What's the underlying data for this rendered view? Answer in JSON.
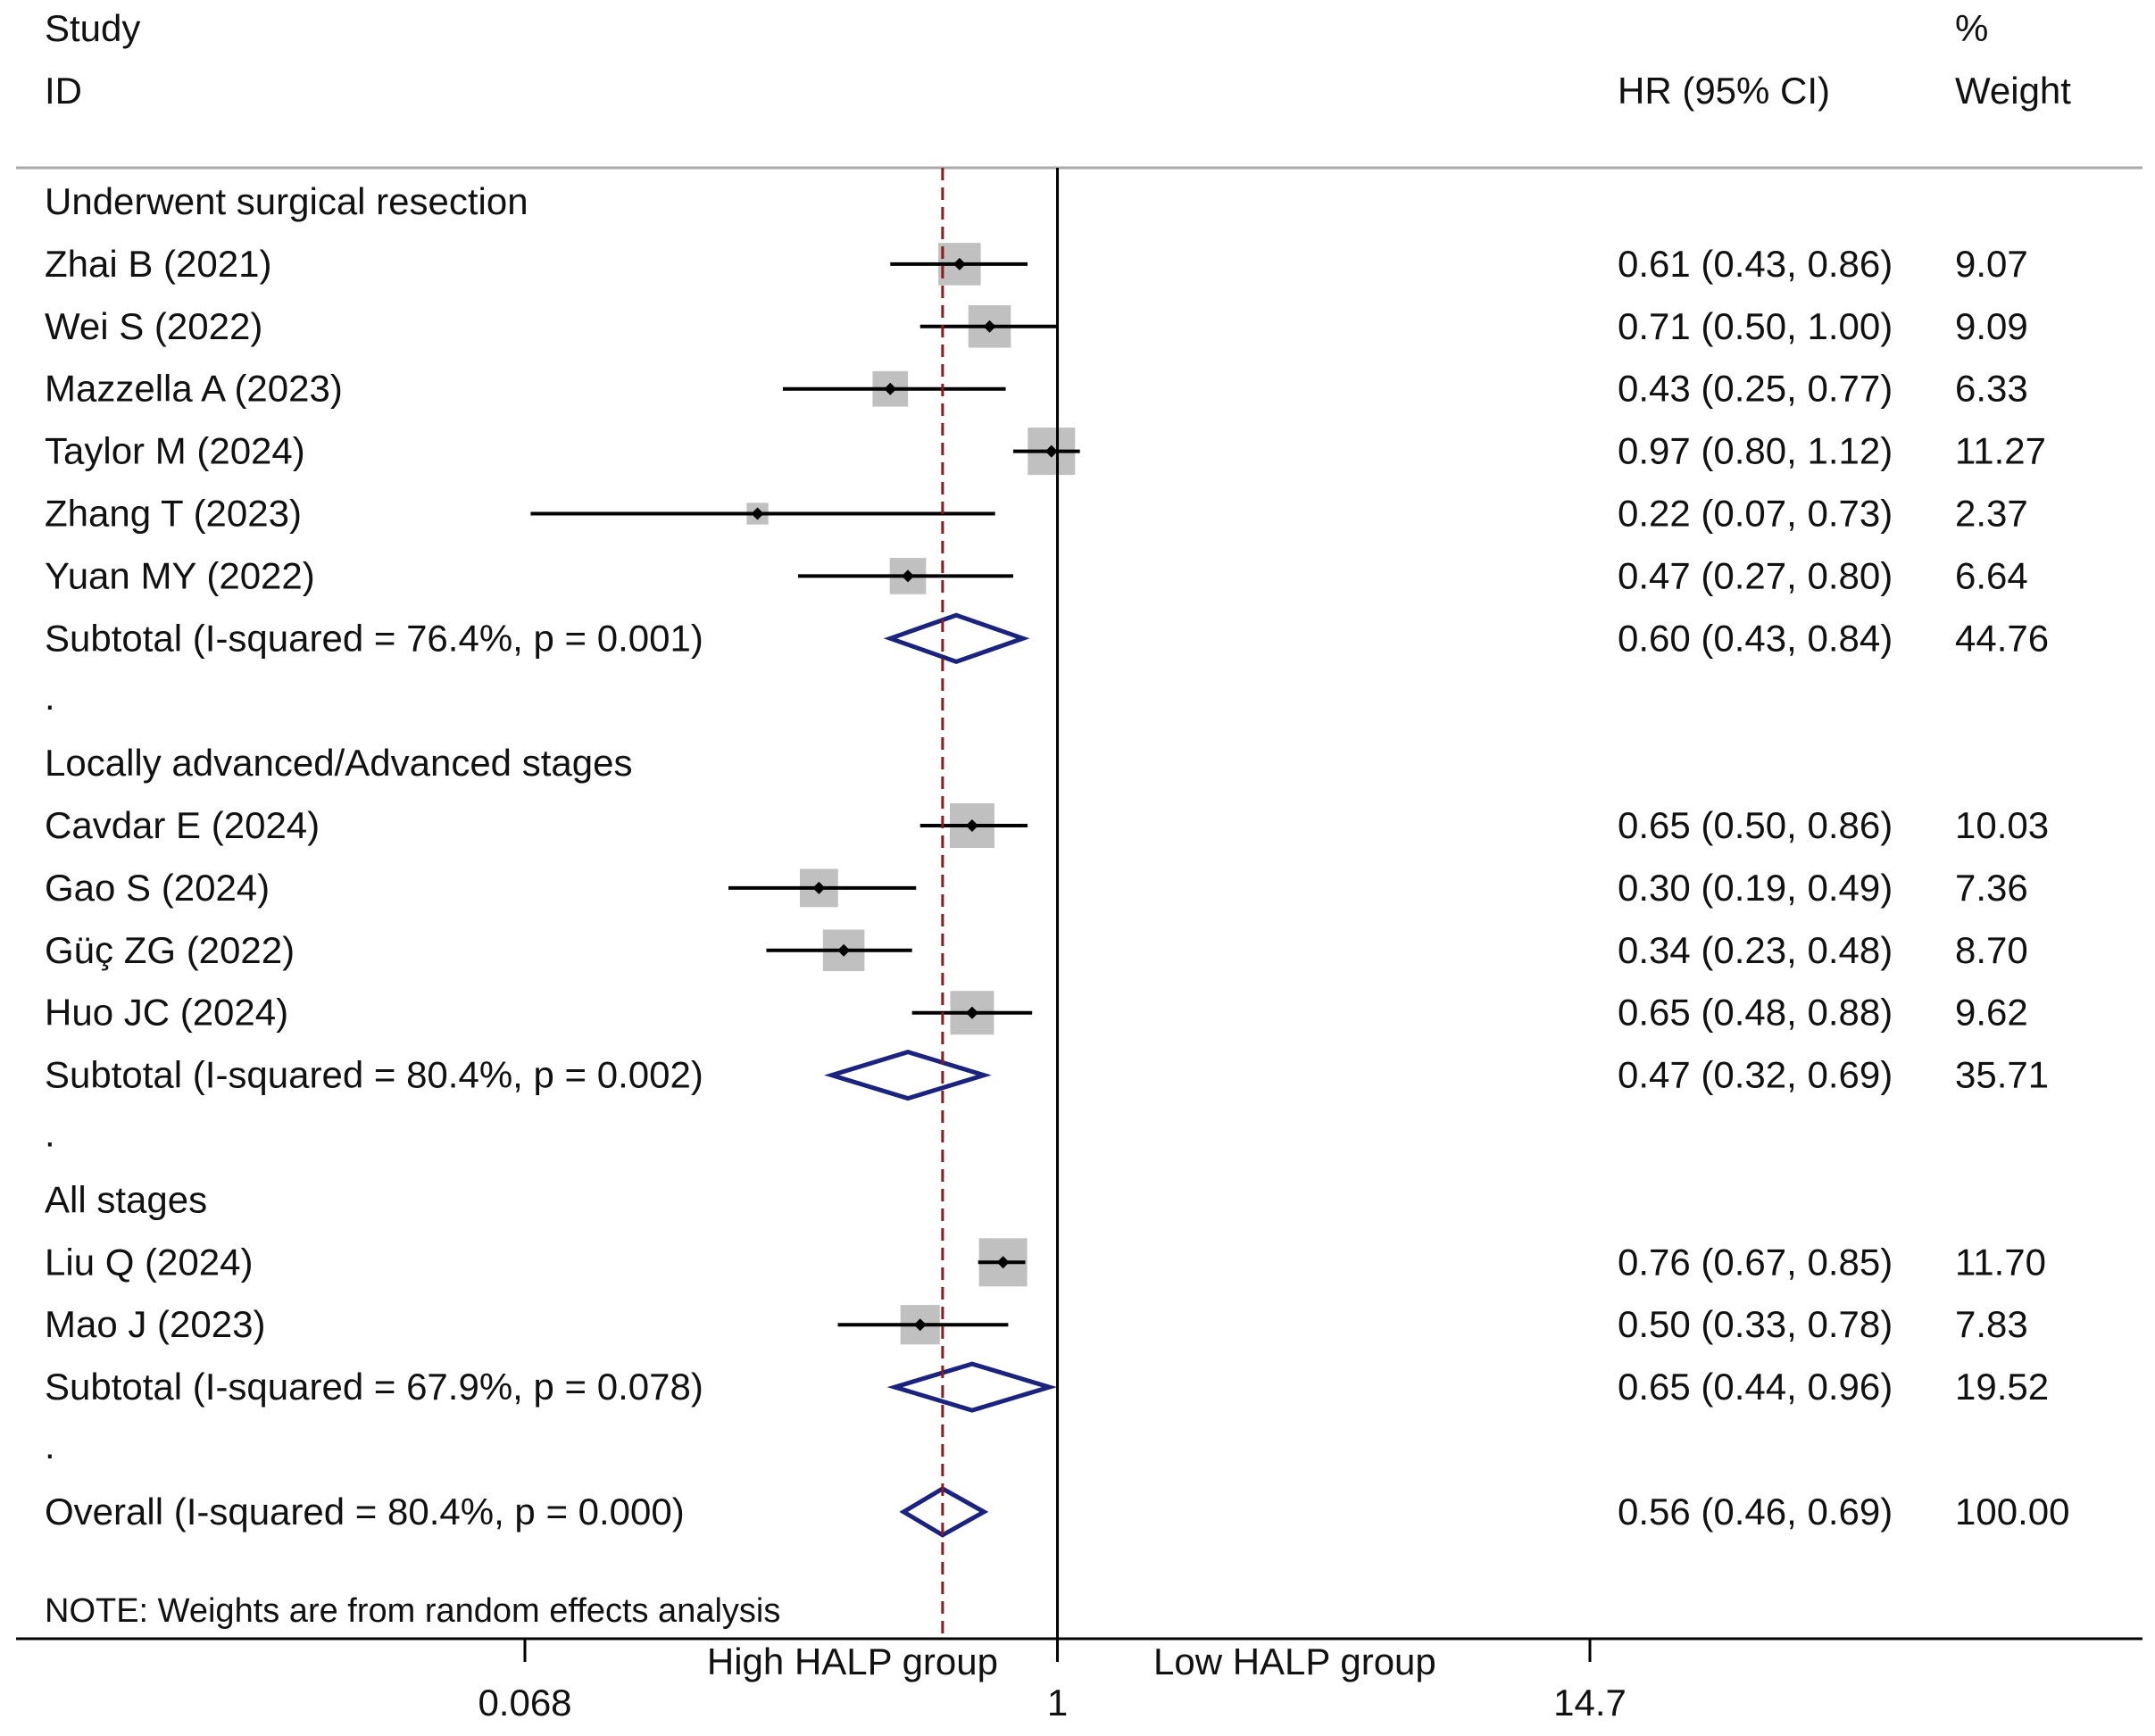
{
  "chart_data": {
    "type": "forest",
    "scale": "log",
    "header": {
      "study_line1": "Study",
      "study_line2": "ID",
      "hr_label": "HR (95% CI)",
      "weight_line1": "%",
      "weight_line2": "Weight"
    },
    "groups": [
      {
        "name": "Underwent surgical resection",
        "studies": [
          {
            "id": "Zhai B (2021)",
            "hr": 0.61,
            "lo": 0.43,
            "hi": 0.86,
            "ci_text": "0.61 (0.43, 0.86)",
            "weight": "9.07"
          },
          {
            "id": "Wei S (2022)",
            "hr": 0.71,
            "lo": 0.5,
            "hi": 1.0,
            "ci_text": "0.71 (0.50, 1.00)",
            "weight": "9.09"
          },
          {
            "id": "Mazzella A (2023)",
            "hr": 0.43,
            "lo": 0.25,
            "hi": 0.77,
            "ci_text": "0.43 (0.25, 0.77)",
            "weight": "6.33"
          },
          {
            "id": "Taylor M (2024)",
            "hr": 0.97,
            "lo": 0.8,
            "hi": 1.12,
            "ci_text": "0.97 (0.80, 1.12)",
            "weight": "11.27"
          },
          {
            "id": "Zhang T (2023)",
            "hr": 0.22,
            "lo": 0.07,
            "hi": 0.73,
            "ci_text": "0.22 (0.07, 0.73)",
            "weight": "2.37"
          },
          {
            "id": "Yuan MY (2022)",
            "hr": 0.47,
            "lo": 0.27,
            "hi": 0.8,
            "ci_text": "0.47 (0.27, 0.80)",
            "weight": "6.64"
          }
        ],
        "subtotal": {
          "label": "Subtotal  (I-squared = 76.4%, p = 0.001)",
          "hr": 0.6,
          "lo": 0.43,
          "hi": 0.84,
          "ci_text": "0.60 (0.43, 0.84)",
          "weight": "44.76"
        }
      },
      {
        "name": "Locally advanced/Advanced stages",
        "studies": [
          {
            "id": "Cavdar E (2024)",
            "hr": 0.65,
            "lo": 0.5,
            "hi": 0.86,
            "ci_text": "0.65 (0.50, 0.86)",
            "weight": "10.03"
          },
          {
            "id": "Gao S (2024)",
            "hr": 0.3,
            "lo": 0.19,
            "hi": 0.49,
            "ci_text": "0.30 (0.19, 0.49)",
            "weight": "7.36"
          },
          {
            "id": "Güç ZG (2022)",
            "hr": 0.34,
            "lo": 0.23,
            "hi": 0.48,
            "ci_text": "0.34 (0.23, 0.48)",
            "weight": "8.70"
          },
          {
            "id": "Huo JC (2024)",
            "hr": 0.65,
            "lo": 0.48,
            "hi": 0.88,
            "ci_text": "0.65 (0.48, 0.88)",
            "weight": "9.62"
          }
        ],
        "subtotal": {
          "label": "Subtotal  (I-squared = 80.4%, p = 0.002)",
          "hr": 0.47,
          "lo": 0.32,
          "hi": 0.69,
          "ci_text": "0.47 (0.32, 0.69)",
          "weight": "35.71"
        }
      },
      {
        "name": "All stages",
        "studies": [
          {
            "id": "Liu Q (2024)",
            "hr": 0.76,
            "lo": 0.67,
            "hi": 0.85,
            "ci_text": "0.76 (0.67, 0.85)",
            "weight": "11.70"
          },
          {
            "id": "Mao J (2023)",
            "hr": 0.5,
            "lo": 0.33,
            "hi": 0.78,
            "ci_text": "0.50 (0.33, 0.78)",
            "weight": "7.83"
          }
        ],
        "subtotal": {
          "label": "Subtotal  (I-squared = 67.9%, p = 0.078)",
          "hr": 0.65,
          "lo": 0.44,
          "hi": 0.96,
          "ci_text": "0.65 (0.44, 0.96)",
          "weight": "19.52"
        }
      }
    ],
    "separator": ".",
    "overall": {
      "label": "Overall  (I-squared = 80.4%, p = 0.000)",
      "hr": 0.56,
      "lo": 0.46,
      "hi": 0.69,
      "ci_text": "0.56 (0.46, 0.69)",
      "weight": "100.00"
    },
    "note": "NOTE: Weights are from random effects analysis",
    "axis": {
      "ticks": [
        0.068,
        1,
        14.7
      ],
      "tick_labels": [
        "0.068",
        "1",
        "14.7"
      ],
      "left_label": "High HALP group",
      "right_label": "Low HALP group",
      "xlim": [
        0.068,
        14.7
      ]
    },
    "colors": {
      "box": "#c0c0c0",
      "line": "#000000",
      "diamond": "#1a237e",
      "overall_line": "#8b1a1a",
      "rule": "#aaaaaa"
    }
  }
}
